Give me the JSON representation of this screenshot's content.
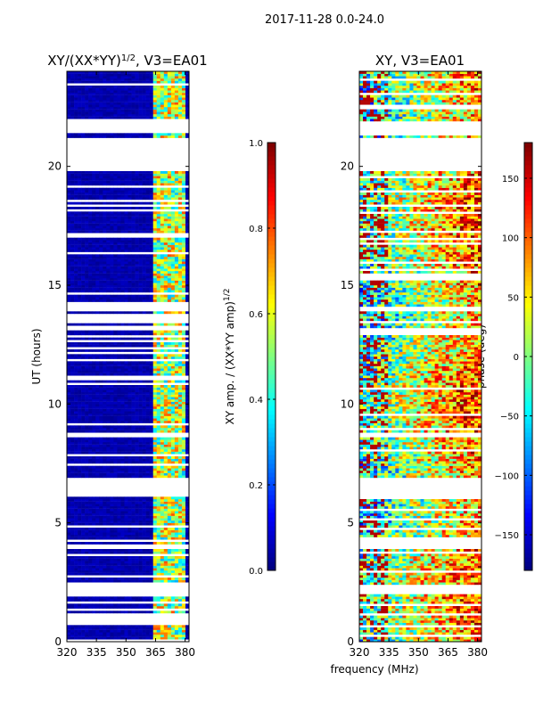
{
  "figure": {
    "suptitle": "2017-11-28 0.0-24.0",
    "xlabel": "frequency (MHz)",
    "ylabel": "UT (hours)",
    "colormap": "jet",
    "colors": {
      "heat_low": "#00007f",
      "heat_high": "#7f0000",
      "background": "#ffffff",
      "axis": "#000000"
    }
  },
  "chart_data": [
    {
      "type": "heatmap",
      "title": "XY/(XX*YY)",
      "title_exp": "1/2",
      "title_suffix": ", V3=EA01",
      "xlim": [
        320,
        382
      ],
      "ylim": [
        0,
        24
      ],
      "xticks": [
        320,
        335,
        350,
        365,
        380
      ],
      "yticks": [
        0,
        5,
        10,
        15,
        20
      ],
      "colorbar": {
        "label": "XY amp. / (XX*YY amp)",
        "label_exp": "1/2",
        "range": [
          0.0,
          1.0
        ],
        "ticks": [
          "0.0",
          "0.2",
          "0.4",
          "0.6",
          "0.8",
          "1.0"
        ]
      }
    },
    {
      "type": "heatmap",
      "title": "XY, V3=EA01",
      "xlim": [
        320,
        382
      ],
      "ylim": [
        0,
        24
      ],
      "xticks": [
        320,
        335,
        350,
        365,
        380
      ],
      "yticks": [
        0,
        5,
        10,
        15,
        20
      ],
      "colorbar": {
        "label": "phase (deg)",
        "range": [
          -180,
          180
        ],
        "ticks": [
          "−150",
          "−100",
          "−50",
          "0",
          "50",
          "100",
          "150"
        ]
      }
    }
  ],
  "data_gaps_ut": [
    [
      2.0,
      2.4
    ],
    [
      6.1,
      6.9
    ],
    [
      19.8,
      21.2
    ],
    [
      21.4,
      21.9
    ]
  ]
}
